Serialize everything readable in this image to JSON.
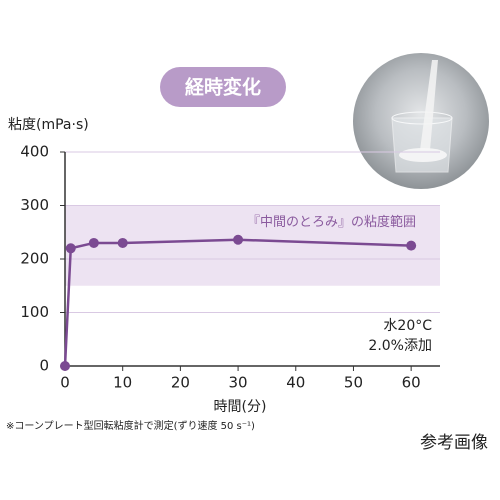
{
  "chart_data": {
    "type": "line",
    "title": "経時変化",
    "y_label": "粘度(mPa·s)",
    "x_label": "時間(分)",
    "x": [
      0,
      1,
      5,
      10,
      30,
      60
    ],
    "series": [
      {
        "name": "粘度",
        "color": "#7b4a92",
        "values": [
          0,
          220,
          230,
          230,
          236,
          225
        ]
      }
    ],
    "xlim": [
      0,
      65
    ],
    "xticks": [
      0,
      10,
      20,
      30,
      40,
      50,
      60
    ],
    "ylim": [
      0,
      400
    ],
    "yticks": [
      0,
      100,
      200,
      300,
      400
    ],
    "grid": true,
    "band": [
      150,
      300
    ],
    "band_label": "『中間のとろみ』の粘度範囲",
    "band_color": "#ede3f2",
    "annotation": [
      "水20°C",
      "2.0%添加"
    ],
    "footnote": "※コーンプレート型回転粘度計で測定(ずり速度 50 s⁻¹)",
    "image_caption": "参考画像"
  }
}
